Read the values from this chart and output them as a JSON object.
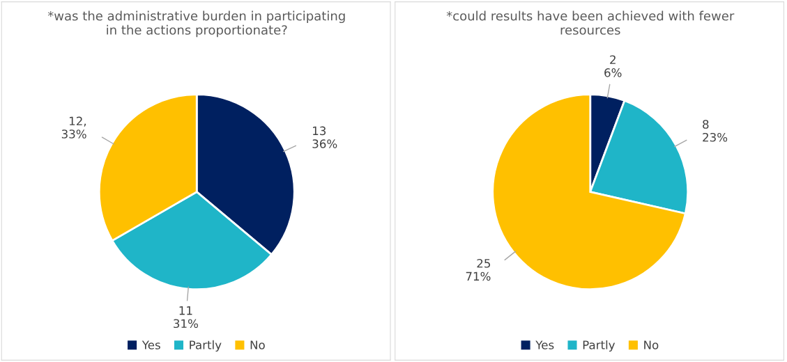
{
  "chart_data": [
    {
      "type": "pie",
      "title": "*was the administrative burden in participating\nin the actions proportionate?",
      "categories": [
        "Yes",
        "Partly",
        "No"
      ],
      "values": [
        13,
        11,
        12
      ],
      "colors": [
        "#002060",
        "#1fb5c8",
        "#ffc000"
      ],
      "value_labels": [
        "13\n36%",
        "11\n31%",
        "12,\n33%"
      ],
      "legend": "bottom"
    },
    {
      "type": "pie",
      "title": "*could results have been achieved with fewer\nresources",
      "categories": [
        "Yes",
        "Partly",
        "No"
      ],
      "values": [
        2,
        8,
        25
      ],
      "colors": [
        "#002060",
        "#1fb5c8",
        "#ffc000"
      ],
      "value_labels": [
        "2\n6%",
        "8\n23%",
        "25\n71%"
      ],
      "legend": "bottom"
    }
  ]
}
